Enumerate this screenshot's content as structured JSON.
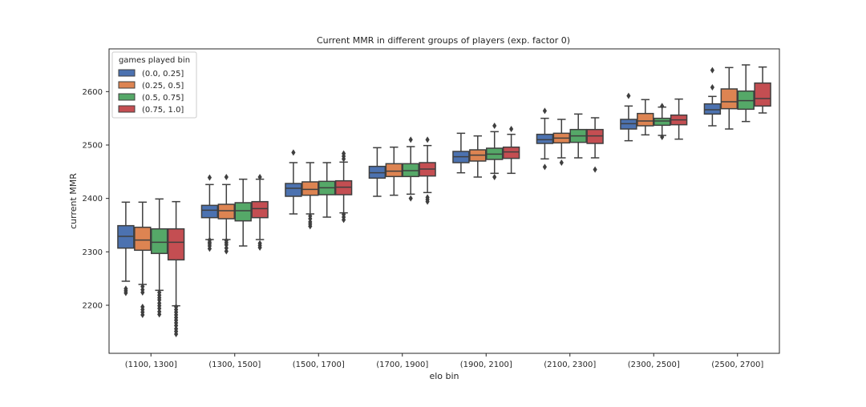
{
  "chart_data": {
    "type": "box",
    "title": "Current MMR in different groups of players (exp. factor 0)",
    "xlabel": "elo bin",
    "ylabel": "current MMR",
    "ylim": [
      2110,
      2680
    ],
    "yticks": [
      2200,
      2300,
      2400,
      2500,
      2600
    ],
    "categories": [
      "(1100, 1300]",
      "(1300, 1500]",
      "(1500, 1700]",
      "(1700, 1900]",
      "(1900, 2100]",
      "(2100, 2300]",
      "(2300, 2500]",
      "(2500, 2700]"
    ],
    "legend": {
      "title": "games played bin",
      "position": "top-left"
    },
    "series": [
      {
        "name": "(0.0, 0.25]",
        "color": "#4c72b0",
        "boxes": [
          {
            "whislo": 2245,
            "q1": 2307,
            "med": 2329,
            "q3": 2349,
            "whishi": 2393,
            "fliers": [
              2223,
              2227,
              2231
            ]
          },
          {
            "whislo": 2323,
            "q1": 2364,
            "med": 2378,
            "q3": 2387,
            "whishi": 2426,
            "fliers": [
              2306,
              2311,
              2315,
              2318,
              2322,
              2439
            ]
          },
          {
            "whislo": 2371,
            "q1": 2404,
            "med": 2419,
            "q3": 2428,
            "whishi": 2467,
            "fliers": [
              2486
            ]
          },
          {
            "whislo": 2404,
            "q1": 2438,
            "med": 2448,
            "q3": 2460,
            "whishi": 2495,
            "fliers": []
          },
          {
            "whislo": 2448,
            "q1": 2467,
            "med": 2478,
            "q3": 2488,
            "whishi": 2522,
            "fliers": []
          },
          {
            "whislo": 2474,
            "q1": 2503,
            "med": 2510,
            "q3": 2520,
            "whishi": 2550,
            "fliers": [
              2459,
              2564
            ]
          },
          {
            "whislo": 2508,
            "q1": 2530,
            "med": 2540,
            "q3": 2548,
            "whishi": 2573,
            "fliers": [
              2592
            ]
          },
          {
            "whislo": 2536,
            "q1": 2558,
            "med": 2566,
            "q3": 2577,
            "whishi": 2591,
            "fliers": [
              2608,
              2640
            ]
          }
        ]
      },
      {
        "name": "(0.25, 0.5]",
        "color": "#dd8452",
        "boxes": [
          {
            "whislo": 2239,
            "q1": 2303,
            "med": 2322,
            "q3": 2346,
            "whishi": 2393,
            "fliers": [
              2182,
              2187,
              2192,
              2197,
              2224,
              2229,
              2235
            ]
          },
          {
            "whislo": 2323,
            "q1": 2362,
            "med": 2377,
            "q3": 2389,
            "whishi": 2426,
            "fliers": [
              2301,
              2307,
              2313,
              2317,
              2321,
              2440
            ]
          },
          {
            "whislo": 2371,
            "q1": 2406,
            "med": 2417,
            "q3": 2431,
            "whishi": 2467,
            "fliers": [
              2348,
              2352,
              2356,
              2362,
              2367
            ]
          },
          {
            "whislo": 2406,
            "q1": 2441,
            "med": 2451,
            "q3": 2465,
            "whishi": 2496,
            "fliers": []
          },
          {
            "whislo": 2440,
            "q1": 2470,
            "med": 2481,
            "q3": 2491,
            "whishi": 2517,
            "fliers": []
          },
          {
            "whislo": 2476,
            "q1": 2504,
            "med": 2513,
            "q3": 2522,
            "whishi": 2548,
            "fliers": [
              2467
            ]
          },
          {
            "whislo": 2519,
            "q1": 2536,
            "med": 2545,
            "q3": 2559,
            "whishi": 2585,
            "fliers": []
          },
          {
            "whislo": 2530,
            "q1": 2568,
            "med": 2581,
            "q3": 2605,
            "whishi": 2645,
            "fliers": []
          }
        ]
      },
      {
        "name": "(0.5, 0.75]",
        "color": "#55a868",
        "boxes": [
          {
            "whislo": 2228,
            "q1": 2297,
            "med": 2318,
            "q3": 2343,
            "whishi": 2399,
            "fliers": [
              2183,
              2188,
              2194,
              2199,
              2204,
              2210,
              2214,
              2219,
              2224
            ]
          },
          {
            "whislo": 2311,
            "q1": 2358,
            "med": 2377,
            "q3": 2392,
            "whishi": 2436,
            "fliers": []
          },
          {
            "whislo": 2365,
            "q1": 2407,
            "med": 2420,
            "q3": 2432,
            "whishi": 2467,
            "fliers": []
          },
          {
            "whislo": 2408,
            "q1": 2441,
            "med": 2452,
            "q3": 2465,
            "whishi": 2497,
            "fliers": [
              2400,
              2510
            ]
          },
          {
            "whislo": 2447,
            "q1": 2473,
            "med": 2483,
            "q3": 2494,
            "whishi": 2525,
            "fliers": [
              2440,
              2536
            ]
          },
          {
            "whislo": 2476,
            "q1": 2505,
            "med": 2517,
            "q3": 2529,
            "whishi": 2558,
            "fliers": []
          },
          {
            "whislo": 2518,
            "q1": 2537,
            "med": 2545,
            "q3": 2550,
            "whishi": 2571,
            "fliers": [
              2515,
              2573
            ]
          },
          {
            "whislo": 2544,
            "q1": 2567,
            "med": 2583,
            "q3": 2601,
            "whishi": 2650,
            "fliers": []
          }
        ]
      },
      {
        "name": "(0.75, 1.0]",
        "color": "#c44e52",
        "boxes": [
          {
            "whislo": 2199,
            "q1": 2285,
            "med": 2318,
            "q3": 2343,
            "whishi": 2394,
            "fliers": [
              2146,
              2151,
              2156,
              2162,
              2167,
              2172,
              2177,
              2182,
              2187,
              2192,
              2197
            ]
          },
          {
            "whislo": 2323,
            "q1": 2364,
            "med": 2381,
            "q3": 2394,
            "whishi": 2436,
            "fliers": [
              2308,
              2312,
              2316,
              2440
            ]
          },
          {
            "whislo": 2373,
            "q1": 2407,
            "med": 2421,
            "q3": 2433,
            "whishi": 2468,
            "fliers": [
              2360,
              2365,
              2370,
              2474,
              2479,
              2484
            ]
          },
          {
            "whislo": 2411,
            "q1": 2442,
            "med": 2455,
            "q3": 2467,
            "whishi": 2499,
            "fliers": [
              2394,
              2398,
              2402,
              2510
            ]
          },
          {
            "whislo": 2447,
            "q1": 2475,
            "med": 2487,
            "q3": 2496,
            "whishi": 2520,
            "fliers": [
              2530
            ]
          },
          {
            "whislo": 2476,
            "q1": 2503,
            "med": 2517,
            "q3": 2529,
            "whishi": 2551,
            "fliers": [
              2454
            ]
          },
          {
            "whislo": 2511,
            "q1": 2538,
            "med": 2547,
            "q3": 2556,
            "whishi": 2586,
            "fliers": []
          },
          {
            "whislo": 2560,
            "q1": 2573,
            "med": 2587,
            "q3": 2616,
            "whishi": 2646,
            "fliers": []
          }
        ]
      }
    ]
  }
}
